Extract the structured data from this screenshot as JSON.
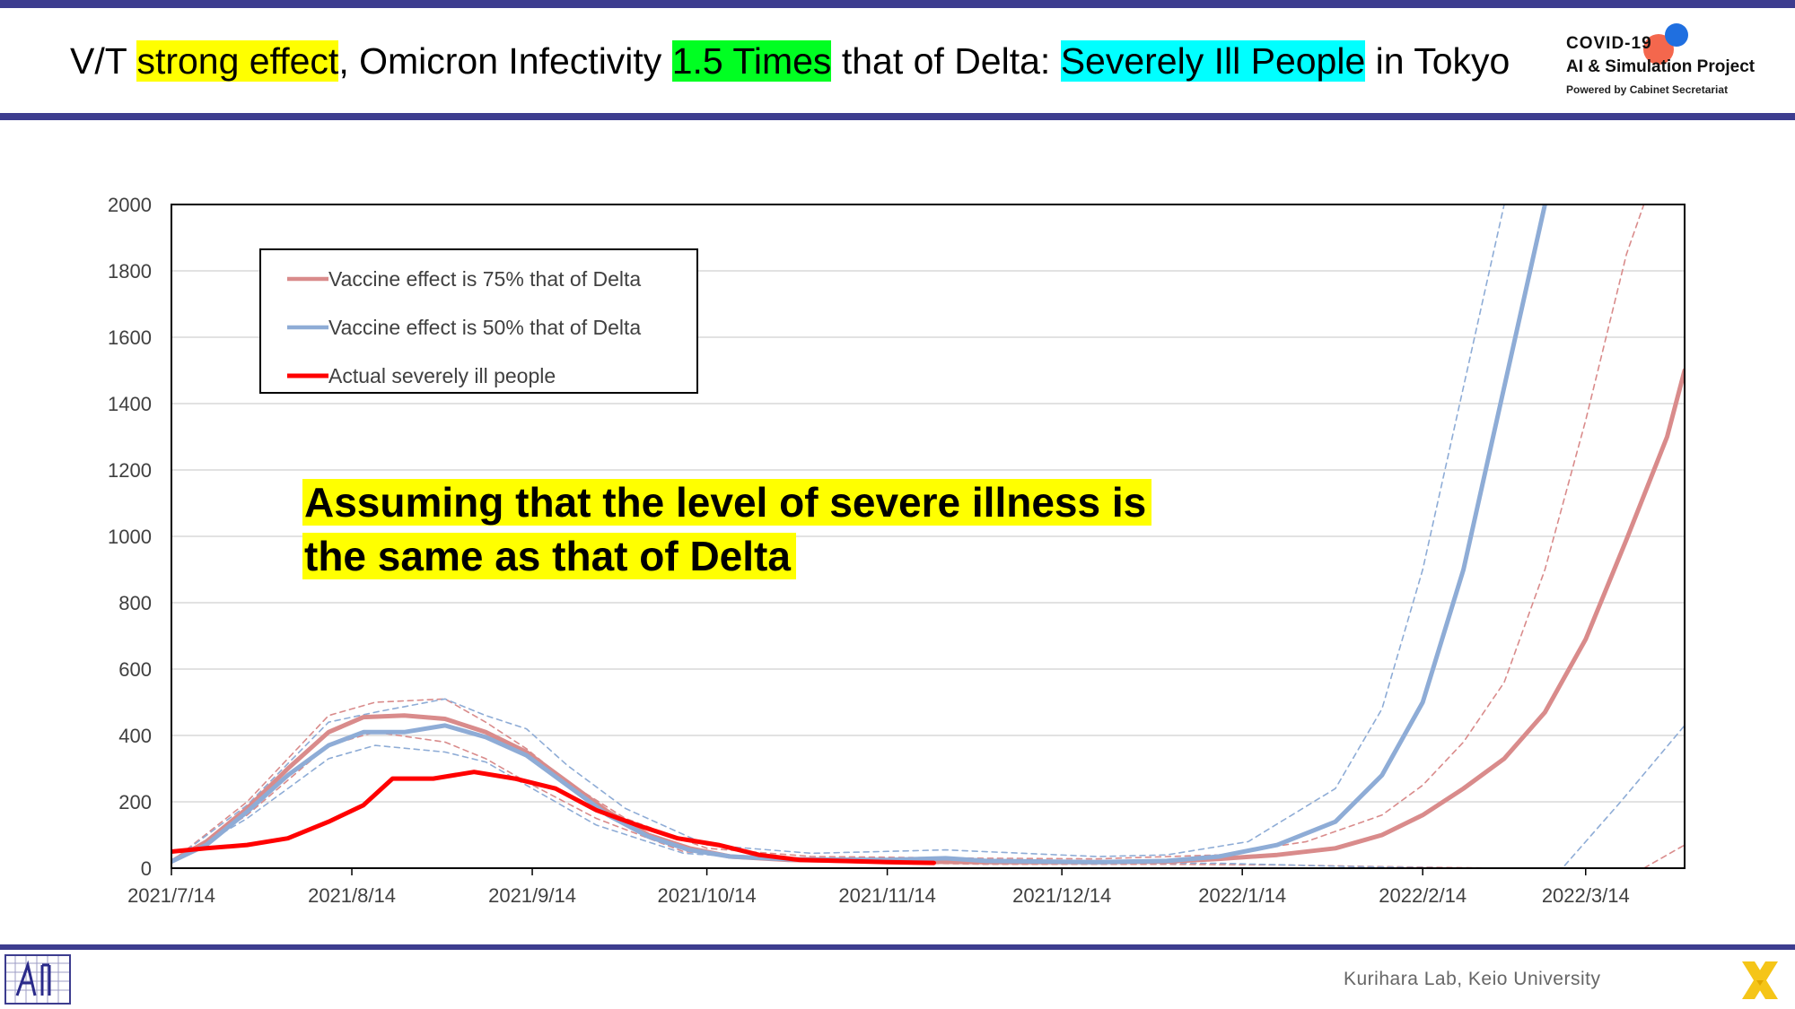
{
  "title": {
    "seg1": "V/T ",
    "seg2": "strong effect",
    "seg3": ", Omicron Infectivity ",
    "seg4": "1.5 Times",
    "seg5": " that of Delta: ",
    "seg6": "Severely Ill People",
    "seg7": " in Tokyo"
  },
  "logo": {
    "line1": "COVID-19",
    "line2": "AI & Simulation Project",
    "line3": "Powered by Cabinet Secretariat"
  },
  "footer": {
    "credit": "Kurihara Lab, Keio University"
  },
  "annotation": {
    "line1": "Assuming that the level of severe illness is",
    "line2": "the same as that of Delta"
  },
  "colors": {
    "series75": "#d98b8b",
    "series50": "#8eacd6",
    "actual": "#ff0000",
    "accent": "#3d3d8f"
  },
  "chart_data": {
    "type": "line",
    "xlabel": "",
    "ylabel": "",
    "ylim": [
      0,
      2000
    ],
    "xlim": [
      "2021-07-14",
      "2022-03-31"
    ],
    "grid": true,
    "legend_position": "top-left",
    "yticks": [
      "0",
      "200",
      "400",
      "600",
      "800",
      "1000",
      "1200",
      "1400",
      "1600",
      "1800",
      "2000"
    ],
    "xticks": [
      {
        "label": "2021/7/14",
        "date": "2021-07-14"
      },
      {
        "label": "2021/8/14",
        "date": "2021-08-14"
      },
      {
        "label": "2021/9/14",
        "date": "2021-09-14"
      },
      {
        "label": "2021/10/14",
        "date": "2021-10-14"
      },
      {
        "label": "2021/11/14",
        "date": "2021-11-14"
      },
      {
        "label": "2021/12/14",
        "date": "2021-12-14"
      },
      {
        "label": "2022/1/14",
        "date": "2022-01-14"
      },
      {
        "label": "2022/2/14",
        "date": "2022-02-14"
      },
      {
        "label": "2022/3/14",
        "date": "2022-03-14"
      }
    ],
    "series": [
      {
        "name": "Vaccine effect is 75% that of Delta",
        "style": "solid",
        "points": [
          [
            "2021-07-14",
            20
          ],
          [
            "2021-07-20",
            80
          ],
          [
            "2021-07-27",
            180
          ],
          [
            "2021-08-03",
            300
          ],
          [
            "2021-08-10",
            410
          ],
          [
            "2021-08-16",
            455
          ],
          [
            "2021-08-23",
            460
          ],
          [
            "2021-08-30",
            450
          ],
          [
            "2021-09-06",
            410
          ],
          [
            "2021-09-13",
            350
          ],
          [
            "2021-09-20",
            260
          ],
          [
            "2021-09-27",
            170
          ],
          [
            "2021-10-04",
            100
          ],
          [
            "2021-10-11",
            60
          ],
          [
            "2021-10-18",
            35
          ],
          [
            "2021-10-28",
            25
          ],
          [
            "2021-11-14",
            20
          ],
          [
            "2021-12-01",
            18
          ],
          [
            "2021-12-20",
            18
          ],
          [
            "2022-01-01",
            20
          ],
          [
            "2022-01-10",
            28
          ],
          [
            "2022-01-20",
            40
          ],
          [
            "2022-01-30",
            60
          ],
          [
            "2022-02-07",
            100
          ],
          [
            "2022-02-14",
            160
          ],
          [
            "2022-02-21",
            240
          ],
          [
            "2022-02-28",
            330
          ],
          [
            "2022-03-07",
            470
          ],
          [
            "2022-03-14",
            690
          ],
          [
            "2022-03-21",
            990
          ],
          [
            "2022-03-28",
            1300
          ],
          [
            "2022-03-31",
            1500
          ]
        ]
      },
      {
        "name": "Vaccine effect is 50% that of Delta",
        "style": "solid",
        "points": [
          [
            "2021-07-14",
            20
          ],
          [
            "2021-07-20",
            70
          ],
          [
            "2021-07-27",
            170
          ],
          [
            "2021-08-03",
            280
          ],
          [
            "2021-08-10",
            370
          ],
          [
            "2021-08-16",
            410
          ],
          [
            "2021-08-23",
            410
          ],
          [
            "2021-08-30",
            430
          ],
          [
            "2021-09-06",
            395
          ],
          [
            "2021-09-13",
            340
          ],
          [
            "2021-09-20",
            250
          ],
          [
            "2021-09-27",
            160
          ],
          [
            "2021-10-04",
            95
          ],
          [
            "2021-10-11",
            55
          ],
          [
            "2021-10-18",
            35
          ],
          [
            "2021-10-28",
            27
          ],
          [
            "2021-11-14",
            25
          ],
          [
            "2021-11-24",
            30
          ],
          [
            "2021-12-01",
            22
          ],
          [
            "2021-12-20",
            18
          ],
          [
            "2022-01-01",
            22
          ],
          [
            "2022-01-10",
            35
          ],
          [
            "2022-01-20",
            70
          ],
          [
            "2022-01-30",
            140
          ],
          [
            "2022-02-07",
            280
          ],
          [
            "2022-02-14",
            500
          ],
          [
            "2022-02-21",
            900
          ],
          [
            "2022-02-28",
            1450
          ],
          [
            "2022-03-07",
            2000
          ]
        ]
      },
      {
        "name": "Actual severely ill people",
        "style": "solid",
        "points": [
          [
            "2021-07-14",
            50
          ],
          [
            "2021-07-20",
            60
          ],
          [
            "2021-07-27",
            70
          ],
          [
            "2021-08-03",
            90
          ],
          [
            "2021-08-10",
            140
          ],
          [
            "2021-08-16",
            190
          ],
          [
            "2021-08-21",
            270
          ],
          [
            "2021-08-28",
            270
          ],
          [
            "2021-09-04",
            290
          ],
          [
            "2021-09-11",
            270
          ],
          [
            "2021-09-18",
            240
          ],
          [
            "2021-09-25",
            175
          ],
          [
            "2021-10-02",
            130
          ],
          [
            "2021-10-09",
            90
          ],
          [
            "2021-10-16",
            70
          ],
          [
            "2021-10-23",
            40
          ],
          [
            "2021-10-30",
            25
          ],
          [
            "2021-11-06",
            22
          ],
          [
            "2021-11-14",
            18
          ],
          [
            "2021-11-22",
            16
          ]
        ]
      },
      {
        "name": "75% upper bound",
        "style": "dashed",
        "points": [
          [
            "2021-07-14",
            20
          ],
          [
            "2021-07-27",
            200
          ],
          [
            "2021-08-10",
            460
          ],
          [
            "2021-08-18",
            500
          ],
          [
            "2021-08-30",
            510
          ],
          [
            "2021-09-06",
            440
          ],
          [
            "2021-09-13",
            360
          ],
          [
            "2021-09-20",
            260
          ],
          [
            "2021-09-30",
            150
          ],
          [
            "2021-10-14",
            60
          ],
          [
            "2021-11-01",
            35
          ],
          [
            "2021-12-01",
            30
          ],
          [
            "2021-12-20",
            28
          ],
          [
            "2022-01-10",
            40
          ],
          [
            "2022-01-25",
            80
          ],
          [
            "2022-02-07",
            160
          ],
          [
            "2022-02-14",
            250
          ],
          [
            "2022-02-21",
            380
          ],
          [
            "2022-02-28",
            560
          ],
          [
            "2022-03-07",
            900
          ],
          [
            "2022-03-14",
            1350
          ],
          [
            "2022-03-21",
            1850
          ],
          [
            "2022-03-24",
            2000
          ]
        ]
      },
      {
        "name": "75% lower bound",
        "style": "dashed",
        "points": [
          [
            "2021-07-14",
            15
          ],
          [
            "2021-07-27",
            160
          ],
          [
            "2021-08-10",
            370
          ],
          [
            "2021-08-18",
            410
          ],
          [
            "2021-08-30",
            380
          ],
          [
            "2021-09-06",
            330
          ],
          [
            "2021-09-13",
            260
          ],
          [
            "2021-09-25",
            150
          ],
          [
            "2021-10-10",
            50
          ],
          [
            "2021-11-01",
            20
          ],
          [
            "2021-12-01",
            12
          ],
          [
            "2022-01-01",
            12
          ],
          [
            "2022-01-20",
            10
          ],
          [
            "2022-02-05",
            5
          ],
          [
            "2022-02-28",
            0
          ],
          [
            "2022-03-24",
            0
          ],
          [
            "2022-03-31",
            70
          ]
        ]
      },
      {
        "name": "50% upper bound",
        "style": "dashed",
        "points": [
          [
            "2021-07-14",
            20
          ],
          [
            "2021-07-27",
            190
          ],
          [
            "2021-08-10",
            440
          ],
          [
            "2021-08-18",
            470
          ],
          [
            "2021-08-30",
            510
          ],
          [
            "2021-09-06",
            460
          ],
          [
            "2021-09-13",
            420
          ],
          [
            "2021-09-20",
            310
          ],
          [
            "2021-09-30",
            180
          ],
          [
            "2021-10-14",
            70
          ],
          [
            "2021-11-01",
            45
          ],
          [
            "2021-11-24",
            55
          ],
          [
            "2021-12-20",
            35
          ],
          [
            "2022-01-01",
            40
          ],
          [
            "2022-01-15",
            80
          ],
          [
            "2022-01-30",
            240
          ],
          [
            "2022-02-07",
            480
          ],
          [
            "2022-02-14",
            900
          ],
          [
            "2022-02-21",
            1450
          ],
          [
            "2022-02-28",
            2000
          ]
        ]
      },
      {
        "name": "50% lower bound",
        "style": "dashed",
        "points": [
          [
            "2021-07-14",
            15
          ],
          [
            "2021-07-27",
            150
          ],
          [
            "2021-08-10",
            330
          ],
          [
            "2021-08-18",
            370
          ],
          [
            "2021-08-30",
            350
          ],
          [
            "2021-09-06",
            320
          ],
          [
            "2021-09-13",
            250
          ],
          [
            "2021-09-25",
            130
          ],
          [
            "2021-10-10",
            45
          ],
          [
            "2021-11-01",
            20
          ],
          [
            "2021-12-01",
            15
          ],
          [
            "2022-01-10",
            15
          ],
          [
            "2022-02-01",
            5
          ],
          [
            "2022-02-20",
            0
          ],
          [
            "2022-03-10",
            0
          ],
          [
            "2022-03-20",
            200
          ],
          [
            "2022-03-31",
            430
          ]
        ]
      }
    ],
    "legend": [
      {
        "label": "Vaccine effect is 75% that of Delta",
        "color": "#d98b8b"
      },
      {
        "label": "Vaccine effect is 50% that of Delta",
        "color": "#8eacd6"
      },
      {
        "label": "Actual severely ill people",
        "color": "#ff0000"
      }
    ]
  }
}
